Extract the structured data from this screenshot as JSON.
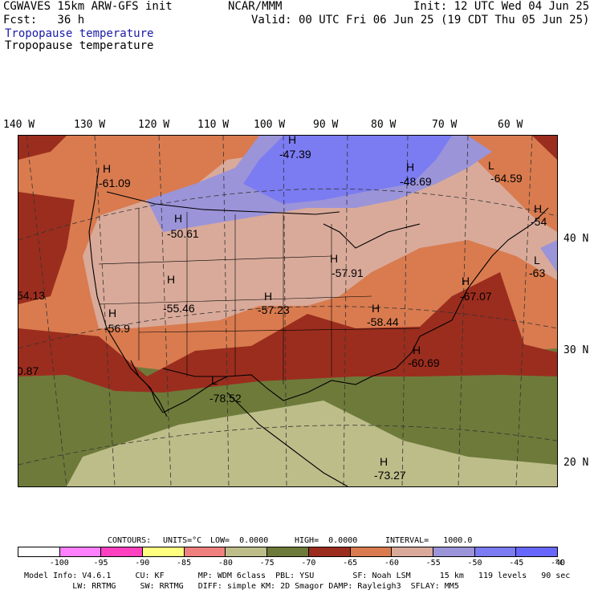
{
  "header": {
    "model": "CGWAVES 15km ARW-GFS init",
    "org": "NCAR/MMM",
    "init": "Init: 12 UTC Wed 04 Jun 25",
    "fcst": "Fcst:   36 h",
    "valid": "Valid: 00 UTC Fri 06 Jun 25 (19 CDT Thu 05 Jun 25)",
    "field_blue": "Tropopause temperature",
    "field_black": "Tropopause temperature"
  },
  "lon_labels": [
    "140 W",
    "130 W",
    "120 W",
    "110 W",
    "100 W",
    "90 W",
    "80 W",
    "70 W",
    "60 W"
  ],
  "lat_labels": [
    "40 N",
    "30 N",
    "20 N"
  ],
  "map_labels": [
    {
      "letter": "H",
      "value": "-47.39"
    },
    {
      "letter": "H",
      "value": "-48.69"
    },
    {
      "letter": "L",
      "value": "-64.59"
    },
    {
      "letter": "H",
      "value": "-54"
    },
    {
      "letter": "L",
      "value": "-63"
    },
    {
      "letter": "H",
      "value": "-61.09"
    },
    {
      "letter": "H",
      "value": "-50.61"
    },
    {
      "letter": "H",
      "value": "-57.91"
    },
    {
      "letter": "H",
      "value": "-55.46"
    },
    {
      "letter": "H",
      "value": "-57.23"
    },
    {
      "letter": "H",
      "value": "-67.07"
    },
    {
      "letter": "H",
      "value": "-58.44"
    },
    {
      "letter": "H",
      "value": "-56.9"
    },
    {
      "letter": "",
      "value": "54.13"
    },
    {
      "letter": "",
      "value": "0.87"
    },
    {
      "letter": "H",
      "value": "-60.69"
    },
    {
      "letter": "L",
      "value": "-78.52"
    },
    {
      "letter": "H",
      "value": "-73.27"
    }
  ],
  "contour_info": {
    "contours": "CONTOURS:",
    "units": "UNITS=°C",
    "low": "LOW=  0.0000",
    "high": "HIGH=  0.0000",
    "interval": "INTERVAL=   1000.0"
  },
  "colorbar": {
    "colors": [
      "#ffffff",
      "#ff80ff",
      "#ff40c0",
      "#ffff80",
      "#f08080",
      "#bdbd8a",
      "#6e7a3a",
      "#9b2d1e",
      "#d97b4f",
      "#d9aa9a",
      "#9b94d9",
      "#7b7bf2",
      "#6767ff"
    ],
    "ticks": [
      "-100",
      "-95",
      "-90",
      "-85",
      "-80",
      "-75",
      "-70",
      "-65",
      "-60",
      "-55",
      "-50",
      "-45",
      "-40"
    ],
    "unit": "°C"
  },
  "footer": {
    "line1": "Model Info: V4.6.1     CU: KF       MP: WDM 6class  PBL: YSU        SF: Noah LSM      15 km   119 levels   90 sec",
    "line2": "          LW: RRTMG     SW: RRTMG   DIFF: simple KM: 2D Smagor DAMP: Rayleigh3  SFLAY: MM5"
  }
}
